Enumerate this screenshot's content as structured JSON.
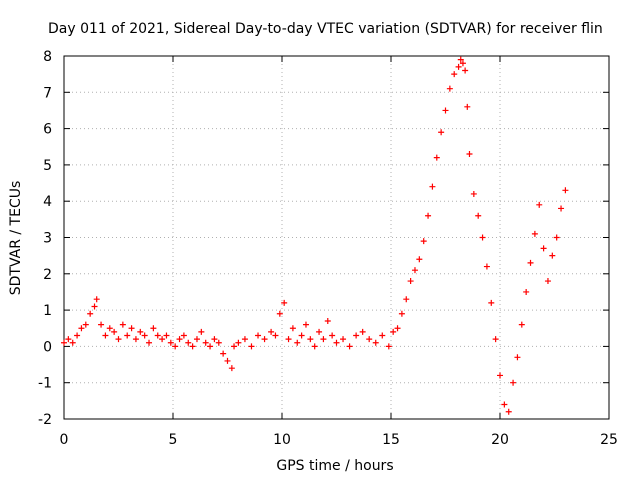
{
  "chart_data": {
    "type": "scatter",
    "title": "Day 011 of 2021, Sidereal Day-to-day VTEC variation (SDTVAR) for receiver flin",
    "xlabel": "GPS time / hours",
    "ylabel": "SDTVAR / TECUs",
    "xlim": [
      0,
      25
    ],
    "ylim": [
      -2,
      8
    ],
    "xticks": [
      "0",
      "5",
      "10",
      "15",
      "20",
      "25"
    ],
    "yticks": [
      "-2",
      "-1",
      "0",
      "1",
      "2",
      "3",
      "4",
      "5",
      "6",
      "7",
      "8"
    ],
    "grid": true,
    "marker": "plus",
    "series": [
      {
        "name": "SDTVAR",
        "color": "#ff0000",
        "x": [
          0.0,
          0.2,
          0.4,
          0.6,
          0.8,
          1.0,
          1.2,
          1.4,
          1.5,
          1.7,
          1.9,
          2.1,
          2.3,
          2.5,
          2.7,
          2.9,
          3.1,
          3.3,
          3.5,
          3.7,
          3.9,
          4.1,
          4.3,
          4.5,
          4.7,
          4.9,
          5.1,
          5.3,
          5.5,
          5.7,
          5.9,
          6.1,
          6.3,
          6.5,
          6.7,
          6.9,
          7.1,
          7.3,
          7.5,
          7.7,
          7.8,
          8.0,
          8.3,
          8.6,
          8.9,
          9.2,
          9.5,
          9.7,
          9.9,
          10.1,
          10.3,
          10.5,
          10.7,
          10.9,
          11.1,
          11.3,
          11.5,
          11.7,
          11.9,
          12.1,
          12.3,
          12.5,
          12.8,
          13.1,
          13.4,
          13.7,
          14.0,
          14.3,
          14.6,
          14.9,
          15.1,
          15.3,
          15.5,
          15.7,
          15.9,
          16.1,
          16.3,
          16.5,
          16.7,
          16.9,
          17.1,
          17.3,
          17.5,
          17.7,
          17.9,
          18.1,
          18.2,
          18.3,
          18.4,
          18.5,
          18.6,
          18.8,
          19.0,
          19.2,
          19.4,
          19.6,
          19.8,
          20.0,
          20.2,
          20.4,
          20.6,
          20.8,
          21.0,
          21.2,
          21.4,
          21.6,
          21.8,
          22.0,
          22.2,
          22.4,
          22.6,
          22.8,
          23.0
        ],
        "y": [
          0.1,
          0.2,
          0.1,
          0.3,
          0.5,
          0.6,
          0.9,
          1.1,
          1.3,
          0.6,
          0.3,
          0.5,
          0.4,
          0.2,
          0.6,
          0.3,
          0.5,
          0.2,
          0.4,
          0.3,
          0.1,
          0.5,
          0.3,
          0.2,
          0.3,
          0.1,
          0.0,
          0.2,
          0.3,
          0.1,
          0.0,
          0.2,
          0.4,
          0.1,
          0.0,
          0.2,
          0.1,
          -0.2,
          -0.4,
          -0.6,
          0.0,
          0.1,
          0.2,
          0.0,
          0.3,
          0.2,
          0.4,
          0.3,
          0.9,
          1.2,
          0.2,
          0.5,
          0.1,
          0.3,
          0.6,
          0.2,
          0.0,
          0.4,
          0.2,
          0.7,
          0.3,
          0.1,
          0.2,
          0.0,
          0.3,
          0.4,
          0.2,
          0.1,
          0.3,
          0.0,
          0.4,
          0.5,
          0.9,
          1.3,
          1.8,
          2.1,
          2.4,
          2.9,
          3.6,
          4.4,
          5.2,
          5.9,
          6.5,
          7.1,
          7.5,
          7.7,
          7.9,
          7.8,
          7.6,
          6.6,
          5.3,
          4.2,
          3.6,
          3.0,
          2.2,
          1.2,
          0.2,
          -0.8,
          -1.6,
          -1.8,
          -1.0,
          -0.3,
          0.6,
          1.5,
          2.3,
          3.1,
          3.9,
          2.7,
          1.8,
          2.5,
          3.0,
          3.8,
          4.3
        ]
      }
    ]
  }
}
